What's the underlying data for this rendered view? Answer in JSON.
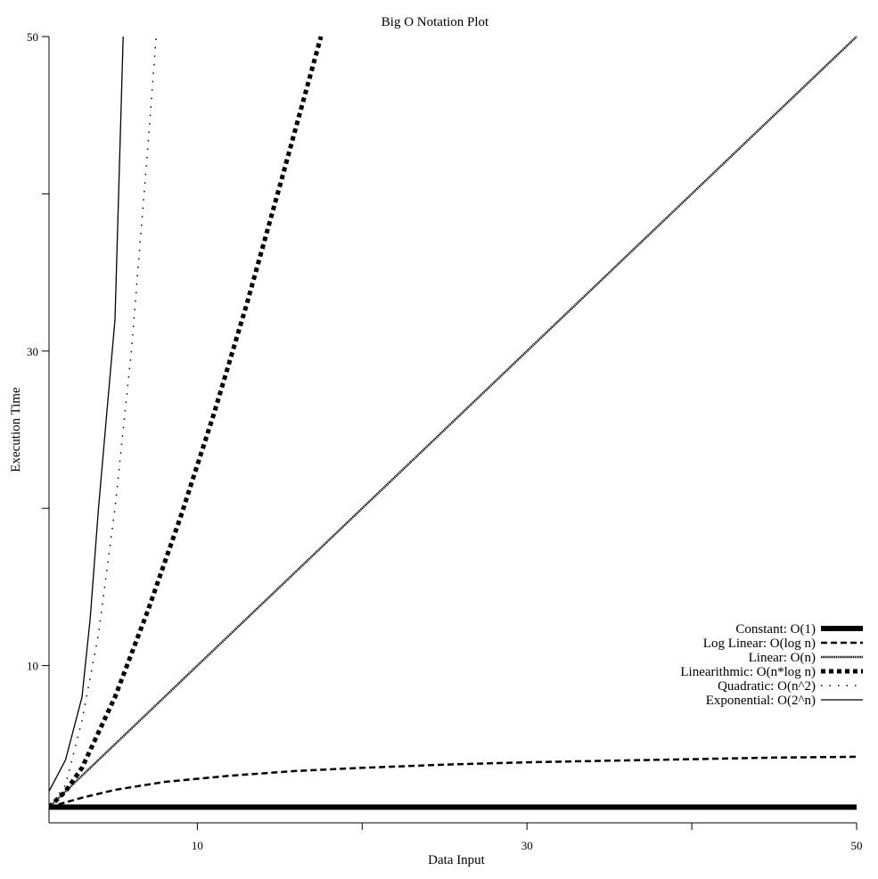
{
  "chart_data": {
    "type": "line",
    "title": "Big O Notation Plot",
    "xlabel": "Data Input",
    "ylabel": "Execution Time",
    "xlim": [
      1,
      50
    ],
    "ylim": [
      0,
      50
    ],
    "xticks": [
      10,
      30,
      50
    ],
    "xticks_minor": [
      20,
      40
    ],
    "yticks": [
      10,
      30,
      50
    ],
    "yticks_minor": [
      20,
      40
    ],
    "grid": false,
    "legend_position": "right",
    "series": [
      {
        "name": "Constant: O(1)",
        "style": "constant",
        "x": [
          1,
          50
        ],
        "y": [
          1,
          1
        ]
      },
      {
        "name": "Log Linear: O(log n)",
        "style": "loglinear",
        "x": [
          1,
          3,
          5,
          8,
          12,
          16,
          20,
          25,
          30,
          35,
          40,
          45,
          50
        ],
        "y": [
          1,
          1.6,
          2.1,
          2.6,
          3.0,
          3.3,
          3.5,
          3.7,
          3.85,
          3.95,
          4.05,
          4.15,
          4.2
        ]
      },
      {
        "name": "Linear: O(n)",
        "style": "linear",
        "x": [
          1,
          50
        ],
        "y": [
          1,
          50
        ]
      },
      {
        "name": "Linearithmic: O(n*log n)",
        "style": "linearithmic",
        "x": [
          1,
          2,
          3,
          5,
          7,
          9,
          11,
          13,
          15,
          17.5
        ],
        "y": [
          1,
          2.0,
          3.5,
          8.0,
          13.5,
          19.5,
          26,
          33,
          40.5,
          50
        ]
      },
      {
        "name": "Quadratic: O(n^2)",
        "style": "quadratic",
        "x": [
          1,
          2,
          3,
          4,
          5,
          6,
          7,
          7.5
        ],
        "y": [
          1,
          2.4,
          6.5,
          12,
          20,
          30,
          43,
          50
        ]
      },
      {
        "name": "Exponential: O(2^n)",
        "style": "exponential",
        "x": [
          1,
          2,
          3,
          3.5,
          4,
          4.5,
          5,
          5.5
        ],
        "y": [
          2,
          4,
          8,
          13,
          20,
          26,
          32,
          50
        ]
      }
    ]
  }
}
